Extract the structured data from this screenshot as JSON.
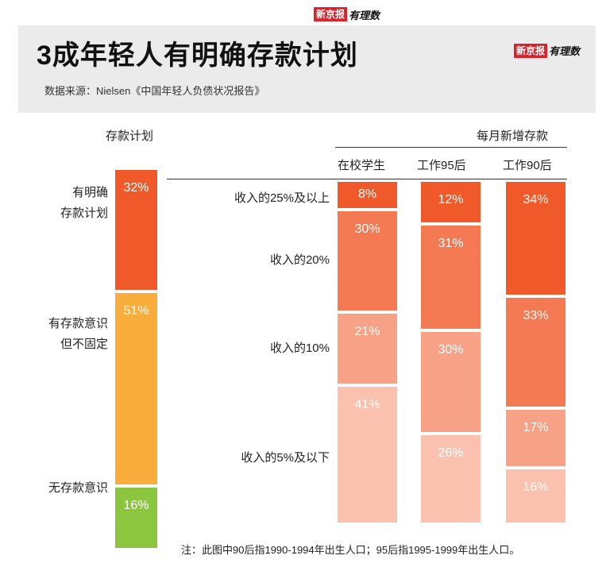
{
  "brand": {
    "logo_box": "新京报",
    "logo_script": "有理数"
  },
  "header": {
    "title": "3成年轻人有明确存款计划",
    "source": "数据来源：Nielsen《中国年轻人负债状况报告》"
  },
  "left_chart": {
    "heading": "存款计划",
    "categories": [
      "有明确存款计划",
      "有存款意识但不固定",
      "无存款意识"
    ],
    "label_lines": [
      [
        "有明确",
        "存款计划"
      ],
      [
        "有存款意识",
        "但不固定"
      ],
      [
        "无存款意识"
      ]
    ],
    "values": [
      32,
      51,
      16
    ],
    "value_labels": [
      "32%",
      "51%",
      "16%"
    ],
    "colors": [
      "#f05a2a",
      "#f9ad3c",
      "#8cc63f"
    ]
  },
  "right_chart": {
    "heading": "每月新增存款",
    "groups": [
      "在校学生",
      "工作95后",
      "工作90后"
    ],
    "levels": [
      "收入的25%及以上",
      "收入的20%",
      "收入的10%",
      "收入的5%及以下"
    ],
    "colors": [
      "#f05a2a",
      "#f47a54",
      "#f7a286",
      "#fac2ae"
    ]
  },
  "chart_data": [
    {
      "type": "bar",
      "title": "存款计划",
      "categories": [
        "有明确存款计划",
        "有存款意识但不固定",
        "无存款意识"
      ],
      "values": [
        32,
        51,
        16
      ],
      "ylabel": "%"
    },
    {
      "type": "bar",
      "title": "每月新增存款",
      "categories": [
        "在校学生",
        "工作95后",
        "工作90后"
      ],
      "series": [
        {
          "name": "收入的25%及以上",
          "values": [
            8,
            12,
            34
          ]
        },
        {
          "name": "收入的20%",
          "values": [
            30,
            31,
            33
          ]
        },
        {
          "name": "收入的10%",
          "values": [
            21,
            30,
            17
          ]
        },
        {
          "name": "收入的5%及以下",
          "values": [
            41,
            26,
            16
          ]
        }
      ],
      "stacked": true,
      "ylabel": "%"
    }
  ],
  "note": "注：此图中90后指1990-1994年出生人口；95后指1995-1999年出生人口。"
}
